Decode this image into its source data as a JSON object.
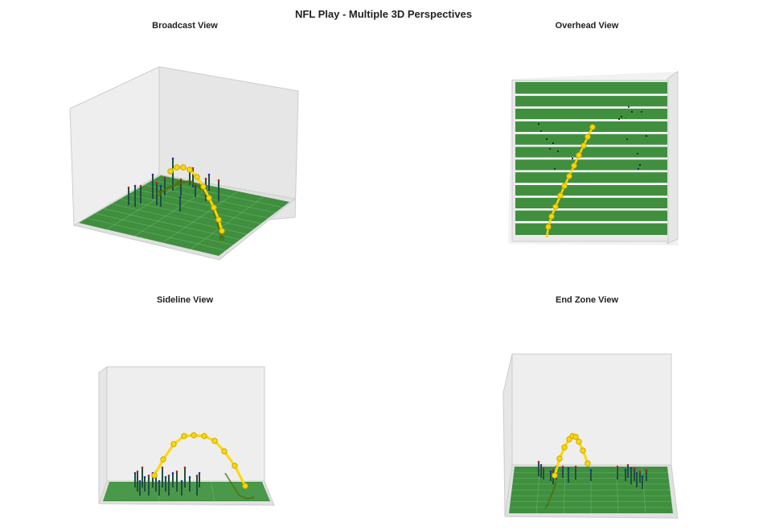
{
  "figure": {
    "title": "NFL Play - Multiple 3D Perspectives"
  },
  "colors": {
    "field": "#3f8f3f",
    "field_line": "#ffffff",
    "pane": "#eeeeee",
    "pane_edge": "#cccccc",
    "ball": "#ffd700",
    "ball_edge": "#c8a800",
    "shadow": "#556b00",
    "offense": "#d01c1c",
    "defense": "#1c2fb0",
    "player_stick": "#1f4f3f"
  },
  "chart_data": [
    {
      "type": "scatter3d",
      "title": "Broadcast View",
      "grid": true,
      "xlim": [
        0,
        120
      ],
      "ylim": [
        0,
        53.3
      ],
      "zlim": [
        0,
        20
      ],
      "ball_path": [
        [
          30,
          8,
          0
        ],
        [
          34,
          12,
          4
        ],
        [
          38,
          16,
          7.5
        ],
        [
          42,
          20,
          10
        ],
        [
          46,
          24,
          12
        ],
        [
          50,
          28,
          13.5
        ],
        [
          54,
          32,
          14
        ],
        [
          58,
          36,
          13.5
        ],
        [
          62,
          40,
          12
        ],
        [
          66,
          44,
          10
        ],
        [
          70,
          48,
          7.5
        ],
        [
          74,
          50,
          4
        ],
        [
          78,
          52,
          0
        ]
      ]
    },
    {
      "type": "scatter3d",
      "title": "Overhead View",
      "grid": false,
      "xlim": [
        0,
        120
      ],
      "ylim": [
        0,
        53.3
      ],
      "zlim": [
        0,
        20
      ]
    },
    {
      "type": "scatter3d",
      "title": "Sideline View",
      "grid": true,
      "xlim": [
        0,
        120
      ],
      "ylim": [
        0,
        53.3
      ],
      "zlim": [
        0,
        20
      ]
    },
    {
      "type": "scatter3d",
      "title": "End Zone View",
      "grid": true,
      "xlim": [
        0,
        120
      ],
      "ylim": [
        0,
        53.3
      ],
      "zlim": [
        0,
        20
      ]
    }
  ]
}
